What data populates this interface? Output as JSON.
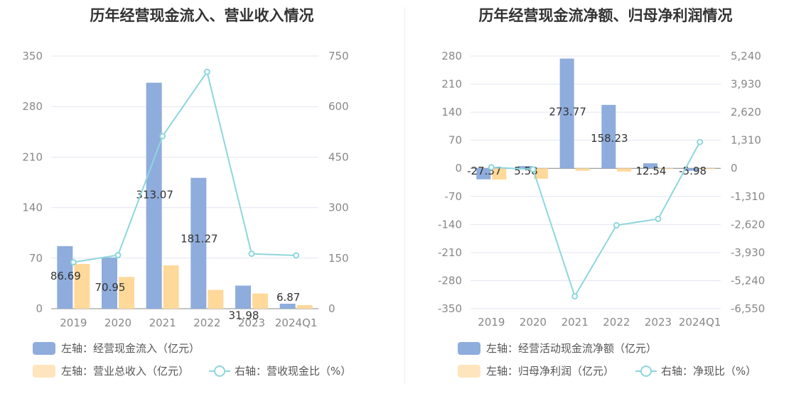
{
  "colors": {
    "bar_primary": "#8eacdc",
    "bar_secondary": "#ffd99a",
    "line": "#8ed6dc",
    "grid": "#e3e6f0",
    "axis_text": "#888888"
  },
  "chart_data": [
    {
      "type": "bar",
      "title": "历年经营现金流入、营业收入情况",
      "categories": [
        "2019",
        "2020",
        "2021",
        "2022",
        "2023",
        "2024Q1"
      ],
      "y_left": {
        "ticks": [
          0,
          70,
          140,
          210,
          280,
          350
        ],
        "range": [
          0,
          350
        ]
      },
      "y_right": {
        "ticks": [
          0,
          150,
          300,
          450,
          600,
          750
        ],
        "range": [
          0,
          750
        ]
      },
      "series": [
        {
          "name": "左轴：经营现金流入（亿元）",
          "axis": "left",
          "kind": "bar",
          "values": [
            86.69,
            70.95,
            313.07,
            181.27,
            31.98,
            6.87
          ],
          "labels": [
            "86.69",
            "70.95",
            "313.07",
            "181.27",
            "31.98",
            "6.87"
          ]
        },
        {
          "name": "左轴：营业总收入（亿元）",
          "axis": "left",
          "kind": "bar",
          "values": [
            62,
            44,
            60,
            26,
            21,
            5
          ]
        },
        {
          "name": "右轴：营收现金比（%）",
          "axis": "right",
          "kind": "line",
          "values": [
            138,
            159,
            512,
            703,
            163,
            158
          ]
        }
      ]
    },
    {
      "type": "bar",
      "title": "历年经营现金流净额、归母净利润情况",
      "categories": [
        "2019",
        "2020",
        "2021",
        "2022",
        "2023",
        "2024Q1"
      ],
      "y_left": {
        "ticks": [
          -350,
          -280,
          -210,
          -140,
          -70,
          0,
          70,
          140,
          210,
          280
        ],
        "range": [
          -350,
          280
        ]
      },
      "y_right": {
        "ticks": [
          "-6,550",
          "-5,240",
          "-3,930",
          "-2,620",
          "-1,310",
          "0",
          "1,310",
          "2,620",
          "3,930",
          "5,240"
        ],
        "range": [
          -6550,
          5240
        ]
      },
      "series": [
        {
          "name": "左轴：经营活动现金流净额（亿元）",
          "axis": "left",
          "kind": "bar",
          "values": [
            -27.37,
            5.58,
            273.77,
            158.23,
            12.54,
            -5.98
          ],
          "labels": [
            "-27.37",
            "5.58",
            "273.77",
            "158.23",
            "12.54",
            "-5.98"
          ]
        },
        {
          "name": "左轴：归母净利润（亿元）",
          "axis": "left",
          "kind": "bar",
          "values": [
            -28,
            -26,
            -6,
            -8,
            -1,
            -1
          ]
        },
        {
          "name": "右轴：净现比（%）",
          "axis": "right",
          "kind": "line",
          "values": [
            50,
            -50,
            -5970,
            -2660,
            -2360,
            1230
          ]
        }
      ]
    }
  ]
}
